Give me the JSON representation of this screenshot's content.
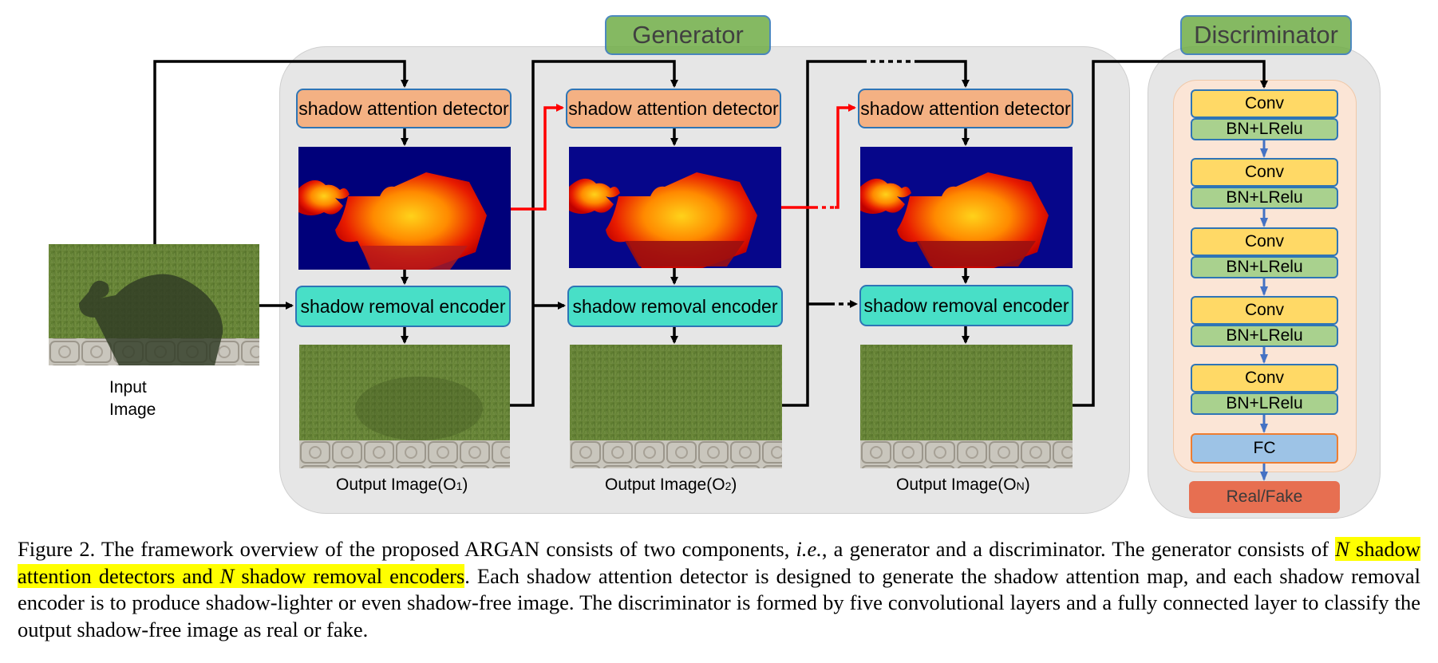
{
  "generator": {
    "title": "Generator",
    "stages": [
      {
        "detector_label": "shadow attention detector",
        "encoder_label": "shadow removal encoder",
        "output_label": "Output Image(O",
        "output_sub": "1",
        "output_end": ")"
      },
      {
        "detector_label": "shadow attention detector",
        "encoder_label": "shadow removal encoder",
        "output_label": "Output Image(O",
        "output_sub": "2",
        "output_end": ")"
      },
      {
        "detector_label": "shadow attention detector",
        "encoder_label": "shadow removal encoder",
        "output_label": "Output Image(O",
        "output_sub": "N",
        "output_end": ")"
      }
    ]
  },
  "input": {
    "label_line1": "Input",
    "label_line2": "Image"
  },
  "discriminator": {
    "title": "Discriminator",
    "layers": [
      {
        "conv": "Conv",
        "bn": "BN+LRelu"
      },
      {
        "conv": "Conv",
        "bn": "BN+LRelu"
      },
      {
        "conv": "Conv",
        "bn": "BN+LRelu"
      },
      {
        "conv": "Conv",
        "bn": "BN+LRelu"
      },
      {
        "conv": "Conv",
        "bn": "BN+LRelu"
      }
    ],
    "fc": "FC",
    "output": "Real/Fake"
  },
  "caption": {
    "part1": "Figure 2. The framework overview of the proposed ARGAN consists of two components, ",
    "ie": "i.e.",
    "part2": ", a generator and a discriminator. The generator consists of ",
    "n1": "N",
    "hl_mid": " shadow attention detectors and ",
    "n2": "N",
    "hl_end": " shadow removal encoders",
    "part3": ". Each shadow attention detector is designed to generate the shadow attention map, and each shadow removal encoder is to produce shadow-lighter or even shadow-free image. The discriminator is formed by five convolutional layers and a fully connected layer to classify the output shadow-free image as real or fake."
  },
  "colors": {
    "detector": "#f4b183",
    "encoder": "#48dfc7",
    "conv": "#ffd966",
    "bn": "#a9d18e",
    "fc": "#9dc3e6",
    "real_fake": "#e76f51",
    "title_box": "#70ad47",
    "highlight": "#ffff00",
    "attention_arrow": "#ff0000",
    "flow_arrow": "#4472c4"
  }
}
